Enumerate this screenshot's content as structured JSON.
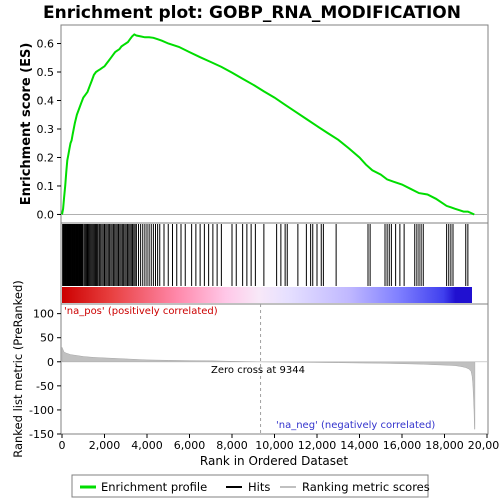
{
  "chart_data": {
    "type": "line",
    "title": "Enrichment plot: GOBP_RNA_MODIFICATION",
    "top_panel": {
      "ylabel": "Enrichment score (ES)",
      "y_ticks": [
        "0.0",
        "0.1",
        "0.2",
        "0.3",
        "0.4",
        "0.5",
        "0.6"
      ],
      "ylim": [
        -0.03,
        0.665
      ],
      "xlim": [
        0,
        20000
      ],
      "series": [
        {
          "name": "Enrichment profile",
          "color": "#00dd00",
          "points": [
            [
              0,
              0.0
            ],
            [
              50,
              0.02
            ],
            [
              100,
              0.06
            ],
            [
              150,
              0.1
            ],
            [
              200,
              0.15
            ],
            [
              250,
              0.19
            ],
            [
              300,
              0.21
            ],
            [
              350,
              0.23
            ],
            [
              400,
              0.25
            ],
            [
              450,
              0.26
            ],
            [
              500,
              0.28
            ],
            [
              550,
              0.3
            ],
            [
              600,
              0.32
            ],
            [
              700,
              0.35
            ],
            [
              800,
              0.37
            ],
            [
              900,
              0.39
            ],
            [
              1000,
              0.41
            ],
            [
              1100,
              0.42
            ],
            [
              1200,
              0.43
            ],
            [
              1300,
              0.45
            ],
            [
              1400,
              0.47
            ],
            [
              1500,
              0.49
            ],
            [
              1600,
              0.5
            ],
            [
              1700,
              0.505
            ],
            [
              1800,
              0.51
            ],
            [
              1900,
              0.515
            ],
            [
              2000,
              0.52
            ],
            [
              2100,
              0.53
            ],
            [
              2200,
              0.54
            ],
            [
              2300,
              0.55
            ],
            [
              2400,
              0.56
            ],
            [
              2500,
              0.57
            ],
            [
              2600,
              0.575
            ],
            [
              2700,
              0.58
            ],
            [
              2800,
              0.59
            ],
            [
              2900,
              0.595
            ],
            [
              3000,
              0.6
            ],
            [
              3100,
              0.605
            ],
            [
              3200,
              0.615
            ],
            [
              3300,
              0.625
            ],
            [
              3400,
              0.632
            ],
            [
              3500,
              0.628
            ],
            [
              3700,
              0.625
            ],
            [
              3900,
              0.622
            ],
            [
              4100,
              0.622
            ],
            [
              4300,
              0.62
            ],
            [
              4500,
              0.615
            ],
            [
              4700,
              0.61
            ],
            [
              5000,
              0.6
            ],
            [
              5500,
              0.588
            ],
            [
              6000,
              0.57
            ],
            [
              6500,
              0.552
            ],
            [
              7000,
              0.535
            ],
            [
              7500,
              0.518
            ],
            [
              8000,
              0.498
            ],
            [
              8500,
              0.476
            ],
            [
              9000,
              0.455
            ],
            [
              9500,
              0.432
            ],
            [
              10000,
              0.41
            ],
            [
              10500,
              0.385
            ],
            [
              11000,
              0.36
            ],
            [
              11500,
              0.335
            ],
            [
              12000,
              0.31
            ],
            [
              12500,
              0.286
            ],
            [
              13000,
              0.262
            ],
            [
              13500,
              0.232
            ],
            [
              14000,
              0.2
            ],
            [
              14300,
              0.175
            ],
            [
              14600,
              0.155
            ],
            [
              15000,
              0.14
            ],
            [
              15300,
              0.123
            ],
            [
              15600,
              0.115
            ],
            [
              16000,
              0.105
            ],
            [
              16400,
              0.09
            ],
            [
              16800,
              0.075
            ],
            [
              17200,
              0.07
            ],
            [
              17600,
              0.055
            ],
            [
              17900,
              0.04
            ],
            [
              18100,
              0.03
            ],
            [
              18300,
              0.025
            ],
            [
              18500,
              0.02
            ],
            [
              18700,
              0.015
            ],
            [
              18900,
              0.01
            ],
            [
              19100,
              0.01
            ],
            [
              19400,
              0.0
            ]
          ]
        }
      ]
    },
    "hits_panel": {
      "legend_label": "Hits",
      "hit_ranks": [
        30,
        60,
        90,
        120,
        150,
        180,
        210,
        240,
        270,
        300,
        330,
        360,
        390,
        420,
        450,
        480,
        510,
        540,
        570,
        600,
        630,
        660,
        690,
        720,
        750,
        780,
        810,
        840,
        870,
        900,
        930,
        960,
        990,
        1050,
        1100,
        1150,
        1200,
        1250,
        1300,
        1350,
        1400,
        1450,
        1500,
        1550,
        1600,
        1650,
        1700,
        1760,
        1820,
        1880,
        1940,
        2000,
        2060,
        2120,
        2180,
        2240,
        2300,
        2360,
        2420,
        2480,
        2540,
        2600,
        2660,
        2720,
        2780,
        2840,
        2900,
        2960,
        3020,
        3080,
        3140,
        3200,
        3260,
        3320,
        3380,
        3440,
        3500,
        3600,
        3700,
        3800,
        3900,
        4000,
        4100,
        4200,
        4300,
        4400,
        4500,
        4600,
        4800,
        5000,
        5200,
        5400,
        5600,
        5800,
        6100,
        6300,
        6500,
        6700,
        6900,
        7100,
        7300,
        7500,
        8000,
        8200,
        8500,
        8700,
        8900,
        9100,
        9500,
        10100,
        10300,
        10500,
        10600,
        11100,
        11500,
        11700,
        11800,
        12000,
        12200,
        12300,
        12900,
        14400,
        14500,
        15200,
        15300,
        15400,
        15500,
        15700,
        15900,
        16100,
        16600,
        16700,
        16800,
        16900,
        17000,
        18100,
        18200,
        18300,
        18400,
        19000,
        19100
      ],
      "heatmap_label_pos": "'na_pos' (positively correlated)",
      "heatmap_label_neg": "'na_neg' (negatively correlated)"
    },
    "bottom_panel": {
      "ylabel": "Ranked list metric (PreRanked)",
      "xlabel": "Rank in Ordered Dataset",
      "y_ticks": [
        "100",
        "50",
        "0",
        "-50",
        "-100",
        "-150"
      ],
      "x_ticks": [
        "0",
        "2,000",
        "4,000",
        "6,000",
        "8,000",
        "10,000",
        "12,000",
        "14,000",
        "16,000",
        "18,000",
        "20,000"
      ],
      "ylim": [
        -150,
        120
      ],
      "zero_cross_label": "Zero cross at 9344",
      "zero_cross": 9344,
      "legend_label": "Ranking metric scores",
      "metric_points": [
        [
          0,
          30
        ],
        [
          50,
          25
        ],
        [
          100,
          20
        ],
        [
          200,
          18
        ],
        [
          400,
          15
        ],
        [
          700,
          13
        ],
        [
          1000,
          11
        ],
        [
          1500,
          9
        ],
        [
          2000,
          8
        ],
        [
          3000,
          6
        ],
        [
          4000,
          4
        ],
        [
          5000,
          3
        ],
        [
          6000,
          2.5
        ],
        [
          7000,
          2
        ],
        [
          8000,
          1
        ],
        [
          9344,
          0
        ],
        [
          10000,
          -0.5
        ],
        [
          11000,
          -1
        ],
        [
          12000,
          -1.5
        ],
        [
          13000,
          -2
        ],
        [
          14000,
          -2.5
        ],
        [
          15000,
          -3
        ],
        [
          16000,
          -4
        ],
        [
          17000,
          -5
        ],
        [
          17500,
          -6
        ],
        [
          18000,
          -7
        ],
        [
          18500,
          -8
        ],
        [
          18800,
          -10
        ],
        [
          19000,
          -12
        ],
        [
          19150,
          -15
        ],
        [
          19250,
          -20
        ],
        [
          19300,
          -30
        ],
        [
          19330,
          -45
        ],
        [
          19360,
          -70
        ],
        [
          19390,
          -100
        ],
        [
          19410,
          -140
        ],
        [
          19430,
          -140
        ],
        [
          19430,
          0
        ]
      ]
    },
    "legend": {
      "items": [
        {
          "label": "Enrichment profile",
          "color": "#00dd00"
        },
        {
          "label": "Hits",
          "color": "#000000"
        },
        {
          "label": "Ranking metric scores",
          "color": "#c0c0c0"
        }
      ]
    }
  }
}
